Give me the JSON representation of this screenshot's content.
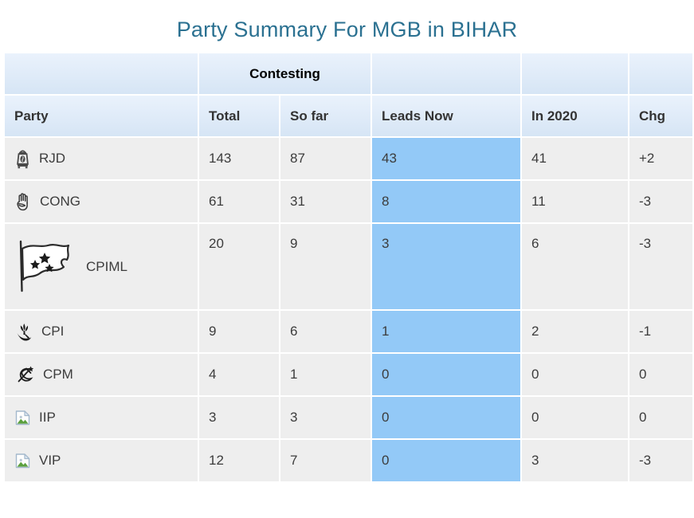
{
  "title": "Party Summary For MGB in BIHAR",
  "colors": {
    "title_color": "#2b7191",
    "leads_highlight": "#93c9f7",
    "header_background_top": "#eaf2fc",
    "header_background_bottom": "#d6e5f5",
    "row_background": "#eeeeee"
  },
  "table": {
    "group_header": "Contesting",
    "columns": {
      "party": "Party",
      "total": "Total",
      "so_far": "So far",
      "leads_now": "Leads Now",
      "in_2020": "In 2020",
      "chg": "Chg"
    },
    "rows": [
      {
        "party": "RJD",
        "icon": "lantern-icon",
        "total": "143",
        "so_far": "87",
        "leads_now": "43",
        "in_2020": "41",
        "chg": "+2",
        "tall": false
      },
      {
        "party": "CONG",
        "icon": "hand-icon",
        "total": "61",
        "so_far": "31",
        "leads_now": "8",
        "in_2020": "11",
        "chg": "-3",
        "tall": false
      },
      {
        "party": "CPIML",
        "icon": "flag-three-stars-icon",
        "total": "20",
        "so_far": "9",
        "leads_now": "3",
        "in_2020": "6",
        "chg": "-3",
        "tall": true
      },
      {
        "party": "CPI",
        "icon": "corn-and-sickle-icon",
        "total": "9",
        "so_far": "6",
        "leads_now": "1",
        "in_2020": "2",
        "chg": "-1",
        "tall": false
      },
      {
        "party": "CPM",
        "icon": "hammer-sickle-star-icon",
        "total": "4",
        "so_far": "1",
        "leads_now": "0",
        "in_2020": "0",
        "chg": "0",
        "tall": false
      },
      {
        "party": "IIP",
        "icon": "broken-image-icon",
        "total": "3",
        "so_far": "3",
        "leads_now": "0",
        "in_2020": "0",
        "chg": "0",
        "tall": false
      },
      {
        "party": "VIP",
        "icon": "broken-image-icon",
        "total": "12",
        "so_far": "7",
        "leads_now": "0",
        "in_2020": "3",
        "chg": "-3",
        "tall": false
      }
    ]
  }
}
